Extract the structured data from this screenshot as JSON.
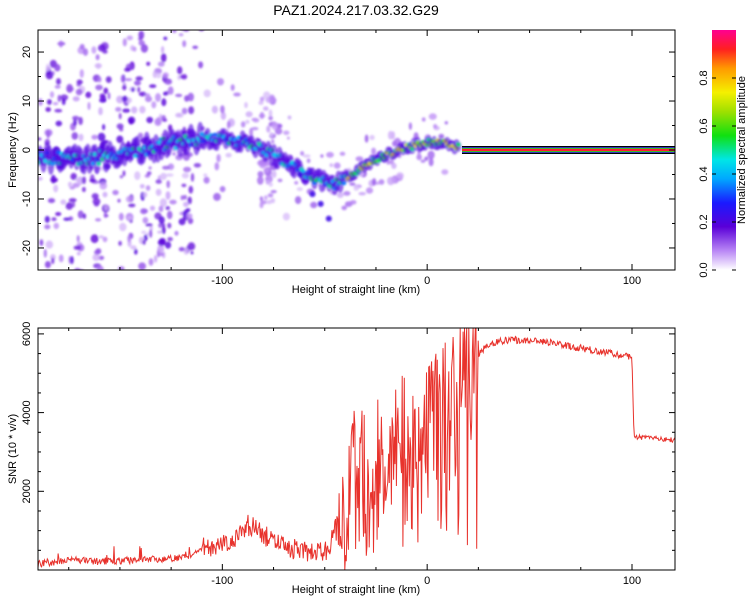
{
  "figure": {
    "title": "PAZ1.2024.217.03.32.G29"
  },
  "chart_data": [
    {
      "type": "heatmap",
      "xlabel": "Height of straight line (km)",
      "ylabel": "Frequency (Hz)",
      "xlim": [
        -190,
        121
      ],
      "ylim": [
        -24.5,
        24.5
      ],
      "x_ticks": [
        -100,
        0,
        100
      ],
      "y_ticks": [
        -20,
        -10,
        0,
        10,
        20
      ],
      "colorbar": {
        "label": "Normalized spectral amplitude",
        "range": [
          0.0,
          1.0
        ],
        "ticks": [
          0.0,
          0.2,
          0.4,
          0.6,
          0.8
        ],
        "colormap": "rainbow (white to purple to blue to cyan to green to yellow to orange to red to magenta)"
      },
      "ridge": {
        "x": [
          -190,
          -170,
          -150,
          -130,
          -110,
          -95,
          -85,
          -75,
          -65,
          -55,
          -45,
          -40,
          -30,
          -20,
          -10,
          0,
          8,
          16,
          121
        ],
        "freq": [
          -1.5,
          -2,
          -1,
          1,
          2.5,
          2,
          1,
          -1,
          -3.5,
          -6,
          -7,
          -6,
          -3,
          -1,
          0.5,
          1.5,
          1.5,
          0.5,
          0
        ],
        "description": "Strong narrow ridge with scattered weak energy at heights below about 0 km; uniform flat red band at 0 Hz from about 17 km to 121 km"
      },
      "flat_band": {
        "x_start": 17,
        "x_end": 121,
        "freq": 0
      }
    },
    {
      "type": "line",
      "xlabel": "Height of straight line (km)",
      "ylabel": "SNR (10 * v/v)",
      "xlim": [
        -190,
        121
      ],
      "ylim": [
        0,
        6150
      ],
      "x_ticks": [
        -100,
        0,
        100
      ],
      "y_ticks": [
        2000,
        4000,
        6000
      ],
      "series": [
        {
          "color": "#e8322c",
          "x": [
            -190,
            -175,
            -160,
            -140,
            -120,
            -105,
            -95,
            -85,
            -75,
            -65,
            -55,
            -48,
            -44,
            -40,
            -36,
            -30,
            -24,
            -18,
            -12,
            -6,
            0,
            6,
            12,
            18,
            24,
            30,
            40,
            50,
            60,
            70,
            80,
            90,
            100,
            101,
            102,
            110,
            121
          ],
          "y": [
            150,
            250,
            220,
            260,
            300,
            600,
            800,
            1100,
            700,
            500,
            450,
            500,
            1500,
            800,
            3000,
            2500,
            3300,
            2900,
            3600,
            3400,
            3900,
            4300,
            4500,
            5000,
            5400,
            5750,
            5850,
            5830,
            5780,
            5680,
            5600,
            5500,
            5400,
            3400,
            3380,
            3350,
            3300
          ]
        }
      ]
    }
  ]
}
